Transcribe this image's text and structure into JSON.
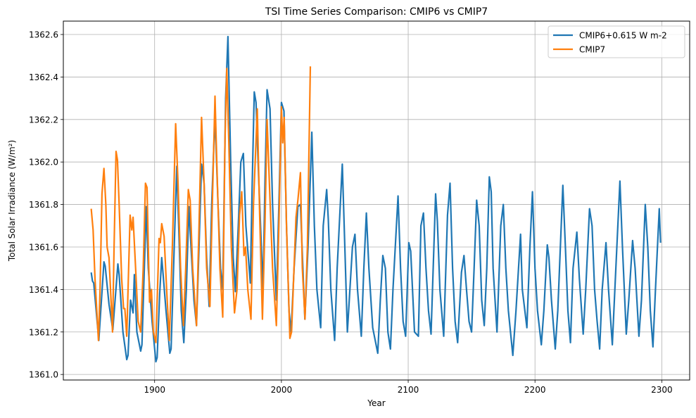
{
  "chart_data": {
    "type": "line",
    "title": "TSI Time Series Comparison: CMIP6 vs CMIP7",
    "xlabel": "Year",
    "ylabel": "Total Solar Irradiance (W/m²)",
    "xlim": [
      1828,
      2322
    ],
    "ylim": [
      1360.974,
      1362.663
    ],
    "xticks": [
      1900,
      2000,
      2100,
      2200,
      2300
    ],
    "yticks": [
      1361.0,
      1361.2,
      1361.4,
      1361.6,
      1361.8,
      1362.0,
      1362.2,
      1362.4,
      1362.6
    ],
    "ytick_labels": [
      "1361.0",
      "1361.2",
      "1361.4",
      "1361.6",
      "1361.8",
      "1362.0",
      "1362.2",
      "1362.4",
      "1362.6"
    ],
    "grid": true,
    "legend_position": "top-right",
    "series": [
      {
        "name": "CMIP6+0.615 W m-2",
        "color": "#1f77b4",
        "points": [
          [
            1850,
            1361.48
          ],
          [
            1851,
            1361.44
          ],
          [
            1852,
            1361.43
          ],
          [
            1856,
            1361.16
          ],
          [
            1860,
            1361.53
          ],
          [
            1861,
            1361.51
          ],
          [
            1864,
            1361.33
          ],
          [
            1867,
            1361.21
          ],
          [
            1871,
            1361.52
          ],
          [
            1872,
            1361.47
          ],
          [
            1875,
            1361.2
          ],
          [
            1878,
            1361.07
          ],
          [
            1879,
            1361.09
          ],
          [
            1881,
            1361.35
          ],
          [
            1883,
            1361.29
          ],
          [
            1884,
            1361.47
          ],
          [
            1886,
            1361.2
          ],
          [
            1889,
            1361.11
          ],
          [
            1890,
            1361.14
          ],
          [
            1893.4,
            1361.79
          ],
          [
            1895,
            1361.5
          ],
          [
            1898,
            1361.25
          ],
          [
            1901,
            1361.06
          ],
          [
            1902,
            1361.08
          ],
          [
            1904,
            1361.38
          ],
          [
            1905.6,
            1361.55
          ],
          [
            1907,
            1361.45
          ],
          [
            1909,
            1361.3
          ],
          [
            1912,
            1361.1
          ],
          [
            1913,
            1361.12
          ],
          [
            1916,
            1361.7
          ],
          [
            1917.5,
            1361.98
          ],
          [
            1919,
            1361.7
          ],
          [
            1921,
            1361.3
          ],
          [
            1923,
            1361.15
          ],
          [
            1925,
            1361.4
          ],
          [
            1927,
            1361.79
          ],
          [
            1928.5,
            1361.62
          ],
          [
            1931,
            1361.35
          ],
          [
            1933,
            1361.23
          ],
          [
            1935,
            1361.6
          ],
          [
            1937,
            1361.99
          ],
          [
            1939,
            1361.9
          ],
          [
            1941,
            1361.55
          ],
          [
            1943,
            1361.32
          ],
          [
            1945,
            1361.8
          ],
          [
            1947.6,
            1362.22
          ],
          [
            1950,
            1361.8
          ],
          [
            1952,
            1361.5
          ],
          [
            1953.7,
            1361.4
          ],
          [
            1956,
            1362.3
          ],
          [
            1957.8,
            1362.59
          ],
          [
            1960,
            1362.0
          ],
          [
            1962,
            1361.55
          ],
          [
            1963.7,
            1361.39
          ],
          [
            1966,
            1361.7
          ],
          [
            1968,
            1362.0
          ],
          [
            1970,
            1362.04
          ],
          [
            1972,
            1361.7
          ],
          [
            1975.5,
            1361.43
          ],
          [
            1977,
            1361.9
          ],
          [
            1978.6,
            1362.33
          ],
          [
            1980,
            1362.28
          ],
          [
            1982,
            1361.94
          ],
          [
            1985.5,
            1361.4
          ],
          [
            1987,
            1361.9
          ],
          [
            1988.7,
            1362.34
          ],
          [
            1991,
            1362.25
          ],
          [
            1993,
            1361.8
          ],
          [
            1996,
            1361.35
          ],
          [
            1998,
            1361.8
          ],
          [
            2000,
            1362.28
          ],
          [
            2002,
            1362.24
          ],
          [
            2004,
            1361.7
          ],
          [
            2006,
            1361.3
          ],
          [
            2007.6,
            1361.2
          ],
          [
            2010,
            1361.5
          ],
          [
            2013,
            1361.79
          ],
          [
            2015,
            1361.8
          ],
          [
            2018.5,
            1361.26
          ],
          [
            2021,
            1361.6
          ],
          [
            2024,
            1362.14
          ],
          [
            2026,
            1361.7
          ],
          [
            2028,
            1361.4
          ],
          [
            2031,
            1361.22
          ],
          [
            2033,
            1361.7
          ],
          [
            2035.7,
            1361.87
          ],
          [
            2037,
            1361.73
          ],
          [
            2039,
            1361.4
          ],
          [
            2042,
            1361.16
          ],
          [
            2044,
            1361.5
          ],
          [
            2048,
            1361.99
          ],
          [
            2050,
            1361.6
          ],
          [
            2052,
            1361.2
          ],
          [
            2054,
            1361.4
          ],
          [
            2056,
            1361.6
          ],
          [
            2058,
            1361.66
          ],
          [
            2060,
            1361.4
          ],
          [
            2063,
            1361.18
          ],
          [
            2065,
            1361.5
          ],
          [
            2067,
            1361.76
          ],
          [
            2069,
            1361.5
          ],
          [
            2072,
            1361.22
          ],
          [
            2076,
            1361.1
          ],
          [
            2078,
            1361.35
          ],
          [
            2080,
            1361.56
          ],
          [
            2082,
            1361.5
          ],
          [
            2084,
            1361.2
          ],
          [
            2086,
            1361.12
          ],
          [
            2088,
            1361.4
          ],
          [
            2092,
            1361.84
          ],
          [
            2094,
            1361.5
          ],
          [
            2096,
            1361.25
          ],
          [
            2098,
            1361.18
          ],
          [
            2100.5,
            1361.62
          ],
          [
            2102,
            1361.58
          ],
          [
            2105,
            1361.2
          ],
          [
            2108,
            1361.18
          ],
          [
            2110,
            1361.7
          ],
          [
            2112,
            1361.76
          ],
          [
            2114,
            1361.5
          ],
          [
            2116,
            1361.3
          ],
          [
            2118,
            1361.19
          ],
          [
            2121.6,
            1361.85
          ],
          [
            2123,
            1361.72
          ],
          [
            2125,
            1361.4
          ],
          [
            2128,
            1361.18
          ],
          [
            2131,
            1361.75
          ],
          [
            2133,
            1361.9
          ],
          [
            2135,
            1361.5
          ],
          [
            2137,
            1361.25
          ],
          [
            2139,
            1361.15
          ],
          [
            2142,
            1361.48
          ],
          [
            2144,
            1361.56
          ],
          [
            2146,
            1361.4
          ],
          [
            2148,
            1361.25
          ],
          [
            2150,
            1361.2
          ],
          [
            2152,
            1361.5
          ],
          [
            2154,
            1361.82
          ],
          [
            2156,
            1361.7
          ],
          [
            2158,
            1361.35
          ],
          [
            2160,
            1361.23
          ],
          [
            2162,
            1361.5
          ],
          [
            2164,
            1361.93
          ],
          [
            2165.5,
            1361.86
          ],
          [
            2167,
            1361.5
          ],
          [
            2170,
            1361.2
          ],
          [
            2173,
            1361.7
          ],
          [
            2175,
            1361.8
          ],
          [
            2177,
            1361.5
          ],
          [
            2179,
            1361.3
          ],
          [
            2182.5,
            1361.09
          ],
          [
            2185,
            1361.3
          ],
          [
            2188.6,
            1361.66
          ],
          [
            2190,
            1361.4
          ],
          [
            2193.6,
            1361.22
          ],
          [
            2196,
            1361.6
          ],
          [
            2198,
            1361.86
          ],
          [
            2200,
            1361.5
          ],
          [
            2202,
            1361.3
          ],
          [
            2205,
            1361.14
          ],
          [
            2207,
            1361.3
          ],
          [
            2209.7,
            1361.61
          ],
          [
            2211,
            1361.55
          ],
          [
            2213,
            1361.35
          ],
          [
            2216,
            1361.12
          ],
          [
            2218,
            1361.3
          ],
          [
            2222,
            1361.89
          ],
          [
            2224,
            1361.6
          ],
          [
            2226,
            1361.3
          ],
          [
            2228,
            1361.15
          ],
          [
            2230,
            1361.5
          ],
          [
            2233,
            1361.67
          ],
          [
            2235,
            1361.45
          ],
          [
            2238,
            1361.19
          ],
          [
            2240,
            1361.4
          ],
          [
            2243,
            1361.78
          ],
          [
            2245,
            1361.7
          ],
          [
            2247,
            1361.4
          ],
          [
            2249,
            1361.25
          ],
          [
            2251,
            1361.12
          ],
          [
            2253,
            1361.4
          ],
          [
            2256,
            1361.62
          ],
          [
            2258,
            1361.4
          ],
          [
            2261,
            1361.14
          ],
          [
            2263,
            1361.4
          ],
          [
            2267,
            1361.91
          ],
          [
            2269,
            1361.6
          ],
          [
            2272,
            1361.19
          ],
          [
            2274,
            1361.35
          ],
          [
            2277,
            1361.63
          ],
          [
            2279,
            1361.5
          ],
          [
            2282,
            1361.18
          ],
          [
            2284,
            1361.35
          ],
          [
            2287,
            1361.8
          ],
          [
            2289,
            1361.6
          ],
          [
            2291,
            1361.3
          ],
          [
            2293,
            1361.13
          ],
          [
            2295,
            1361.4
          ],
          [
            2298,
            1361.78
          ],
          [
            2299,
            1361.62
          ]
        ]
      },
      {
        "name": "CMIP7",
        "color": "#ff7f0e",
        "points": [
          [
            1850,
            1361.78
          ],
          [
            1851.5,
            1361.68
          ],
          [
            1853,
            1361.45
          ],
          [
            1855.7,
            1361.16
          ],
          [
            1857,
            1361.4
          ],
          [
            1858.5,
            1361.85
          ],
          [
            1860,
            1361.97
          ],
          [
            1861.5,
            1361.8
          ],
          [
            1862.5,
            1361.6
          ],
          [
            1864,
            1361.55
          ],
          [
            1866.8,
            1361.2
          ],
          [
            1868,
            1361.6
          ],
          [
            1869.6,
            1362.05
          ],
          [
            1870.7,
            1362.01
          ],
          [
            1872,
            1361.8
          ],
          [
            1874,
            1361.45
          ],
          [
            1875.5,
            1361.31
          ],
          [
            1876.5,
            1361.31
          ],
          [
            1878,
            1361.18
          ],
          [
            1880.7,
            1361.75
          ],
          [
            1882,
            1361.68
          ],
          [
            1883,
            1361.74
          ],
          [
            1885,
            1361.5
          ],
          [
            1887,
            1361.25
          ],
          [
            1889,
            1361.2
          ],
          [
            1891,
            1361.5
          ],
          [
            1892.8,
            1361.9
          ],
          [
            1894,
            1361.88
          ],
          [
            1896,
            1361.34
          ],
          [
            1897.5,
            1361.4
          ],
          [
            1899,
            1361.2
          ],
          [
            1901,
            1361.15
          ],
          [
            1903.5,
            1361.64
          ],
          [
            1904.5,
            1361.62
          ],
          [
            1905.6,
            1361.71
          ],
          [
            1907.5,
            1361.65
          ],
          [
            1909.5,
            1361.4
          ],
          [
            1911.6,
            1361.16
          ],
          [
            1914,
            1361.6
          ],
          [
            1916.6,
            1362.18
          ],
          [
            1918.5,
            1361.9
          ],
          [
            1920.5,
            1361.5
          ],
          [
            1922.7,
            1361.23
          ],
          [
            1924.5,
            1361.5
          ],
          [
            1926.6,
            1361.87
          ],
          [
            1928,
            1361.82
          ],
          [
            1930,
            1361.5
          ],
          [
            1933,
            1361.23
          ],
          [
            1935,
            1361.7
          ],
          [
            1937,
            1362.21
          ],
          [
            1939,
            1361.9
          ],
          [
            1941,
            1361.5
          ],
          [
            1943.6,
            1361.32
          ],
          [
            1945.5,
            1361.8
          ],
          [
            1947.6,
            1362.31
          ],
          [
            1949.5,
            1361.9
          ],
          [
            1951.5,
            1361.5
          ],
          [
            1953.7,
            1361.27
          ],
          [
            1955.5,
            1362.1
          ],
          [
            1956.9,
            1362.44
          ],
          [
            1958.5,
            1362.1
          ],
          [
            1960.5,
            1361.6
          ],
          [
            1963,
            1361.29
          ],
          [
            1965,
            1361.4
          ],
          [
            1967,
            1361.75
          ],
          [
            1968.7,
            1361.86
          ],
          [
            1970.5,
            1361.56
          ],
          [
            1971.7,
            1361.6
          ],
          [
            1973.5,
            1361.4
          ],
          [
            1976,
            1361.26
          ],
          [
            1978,
            1361.8
          ],
          [
            1981,
            1362.25
          ],
          [
            1982.8,
            1361.76
          ],
          [
            1985,
            1361.26
          ],
          [
            1987,
            1361.7
          ],
          [
            1988.7,
            1362.2
          ],
          [
            1990.5,
            1361.9
          ],
          [
            1993,
            1361.5
          ],
          [
            1996,
            1361.23
          ],
          [
            1998,
            1361.7
          ],
          [
            2000,
            1362.26
          ],
          [
            2001,
            1362.09
          ],
          [
            2002.2,
            1362.21
          ],
          [
            2004,
            1361.7
          ],
          [
            2006.7,
            1361.17
          ],
          [
            2008,
            1361.2
          ],
          [
            2011.5,
            1361.74
          ],
          [
            2013,
            1361.82
          ],
          [
            2015,
            1361.95
          ],
          [
            2016.5,
            1361.5
          ],
          [
            2018.6,
            1361.26
          ],
          [
            2020.5,
            1361.6
          ],
          [
            2022.8,
            1362.45
          ]
        ]
      }
    ]
  }
}
